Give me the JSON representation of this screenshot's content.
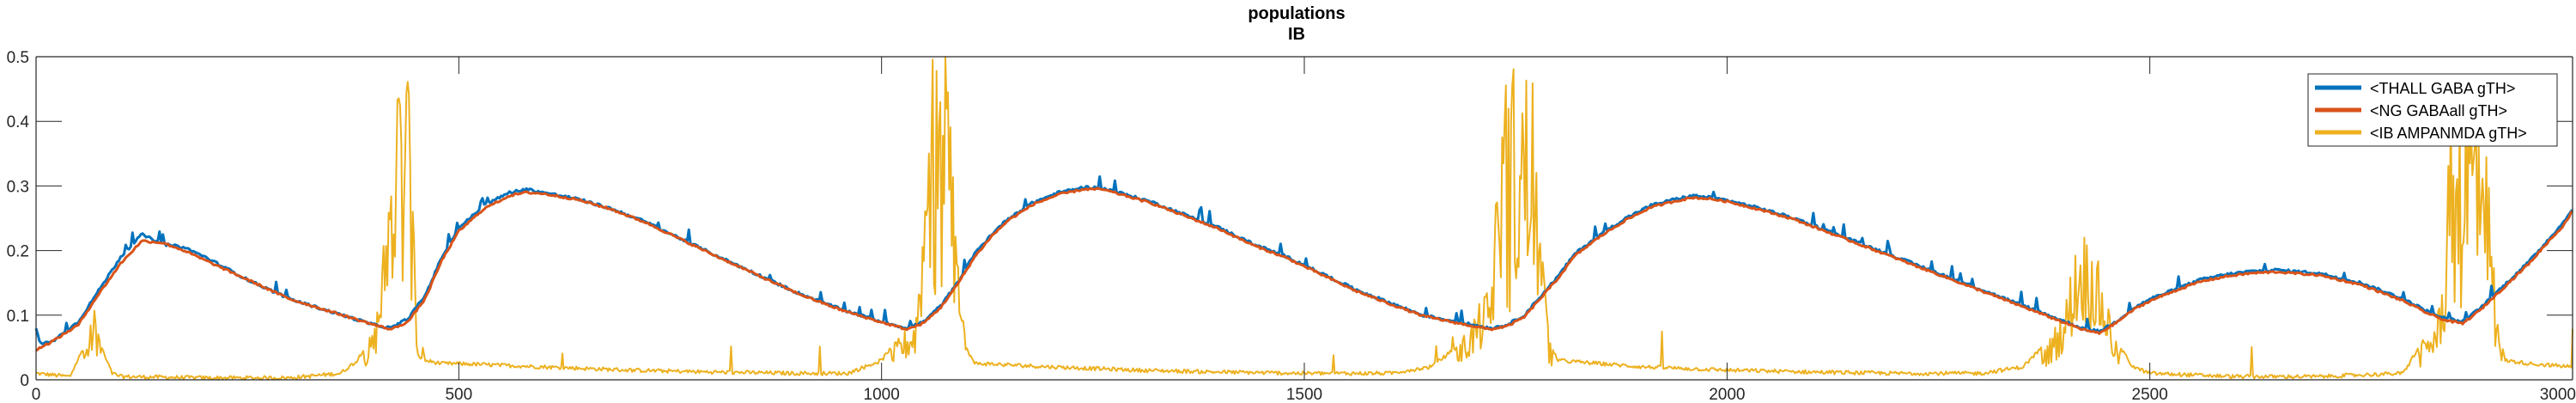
{
  "chart_data": {
    "type": "line",
    "title": "populations",
    "subtitle": "IB",
    "xlabel": "",
    "ylabel": "",
    "xlim": [
      0,
      3000
    ],
    "ylim": [
      0,
      0.5
    ],
    "x_ticks": [
      0,
      500,
      1000,
      1500,
      2000,
      2500,
      3000
    ],
    "y_ticks": [
      0,
      0.1,
      0.2,
      0.3,
      0.4,
      0.5
    ],
    "x_tick_labels": [
      "0",
      "500",
      "1000",
      "1500",
      "2000",
      "2500",
      "3000"
    ],
    "y_tick_labels": [
      "0",
      "0.1",
      "0.2",
      "0.3",
      "0.4",
      "0.5"
    ],
    "grid": false,
    "legend_position": "top-right",
    "series": [
      {
        "name": "<THALL GABA gTH>",
        "color": "#0072BD",
        "x": [
          0,
          5,
          20,
          50,
          70,
          100,
          125,
          150,
          175,
          200,
          250,
          300,
          350,
          400,
          420,
          440,
          460,
          480,
          500,
          530,
          560,
          580,
          600,
          640,
          680,
          720,
          760,
          800,
          850,
          900,
          950,
          1000,
          1030,
          1050,
          1070,
          1090,
          1110,
          1130,
          1150,
          1180,
          1210,
          1240,
          1260,
          1280,
          1320,
          1360,
          1400,
          1440,
          1480,
          1520,
          1560,
          1600,
          1640,
          1680,
          1700,
          1720,
          1740,
          1760,
          1780,
          1800,
          1820,
          1850,
          1880,
          1910,
          1940,
          1960,
          1980,
          2000,
          2040,
          2080,
          2120,
          2160,
          2200,
          2240,
          2280,
          2320,
          2360,
          2390,
          2420,
          2440,
          2460,
          2480,
          2500,
          2530,
          2560,
          2590,
          2620,
          2650,
          2700,
          2750,
          2800,
          2830,
          2850,
          2870,
          2890,
          2910,
          2930,
          2950,
          2970,
          2990,
          3000
        ],
        "y": [
          0.08,
          0.055,
          0.06,
          0.09,
          0.13,
          0.19,
          0.225,
          0.21,
          0.205,
          0.19,
          0.155,
          0.125,
          0.105,
          0.085,
          0.08,
          0.095,
          0.13,
          0.19,
          0.235,
          0.27,
          0.29,
          0.295,
          0.29,
          0.28,
          0.265,
          0.245,
          0.22,
          0.195,
          0.165,
          0.135,
          0.11,
          0.09,
          0.08,
          0.09,
          0.115,
          0.15,
          0.195,
          0.225,
          0.25,
          0.275,
          0.29,
          0.298,
          0.297,
          0.29,
          0.275,
          0.255,
          0.235,
          0.21,
          0.19,
          0.165,
          0.14,
          0.12,
          0.1,
          0.09,
          0.085,
          0.08,
          0.085,
          0.1,
          0.13,
          0.16,
          0.195,
          0.225,
          0.25,
          0.27,
          0.28,
          0.285,
          0.282,
          0.278,
          0.265,
          0.25,
          0.23,
          0.21,
          0.19,
          0.17,
          0.15,
          0.13,
          0.11,
          0.095,
          0.08,
          0.075,
          0.09,
          0.11,
          0.125,
          0.14,
          0.155,
          0.163,
          0.168,
          0.17,
          0.165,
          0.15,
          0.125,
          0.105,
          0.095,
          0.09,
          0.11,
          0.135,
          0.16,
          0.185,
          0.215,
          0.245,
          0.265
        ],
        "annotations": "small spikes superimposed on the slow envelope"
      },
      {
        "name": "<NG GABAall gTH>",
        "color": "#D95319",
        "x": [
          0,
          5,
          20,
          50,
          70,
          100,
          125,
          150,
          175,
          200,
          250,
          300,
          350,
          400,
          420,
          440,
          460,
          480,
          500,
          530,
          560,
          580,
          600,
          640,
          680,
          720,
          760,
          800,
          850,
          900,
          950,
          1000,
          1030,
          1050,
          1070,
          1090,
          1110,
          1130,
          1150,
          1180,
          1210,
          1240,
          1260,
          1280,
          1320,
          1360,
          1400,
          1440,
          1480,
          1520,
          1560,
          1600,
          1640,
          1680,
          1700,
          1720,
          1740,
          1760,
          1780,
          1800,
          1820,
          1850,
          1880,
          1910,
          1940,
          1960,
          1980,
          2000,
          2040,
          2080,
          2120,
          2160,
          2200,
          2240,
          2280,
          2320,
          2360,
          2390,
          2420,
          2440,
          2460,
          2480,
          2500,
          2530,
          2560,
          2590,
          2620,
          2650,
          2700,
          2750,
          2800,
          2830,
          2850,
          2870,
          2890,
          2910,
          2930,
          2950,
          2970,
          2990,
          3000
        ],
        "y": [
          0.045,
          0.05,
          0.06,
          0.085,
          0.125,
          0.18,
          0.215,
          0.212,
          0.2,
          0.185,
          0.155,
          0.125,
          0.105,
          0.085,
          0.078,
          0.09,
          0.125,
          0.185,
          0.23,
          0.265,
          0.285,
          0.29,
          0.288,
          0.279,
          0.264,
          0.244,
          0.219,
          0.194,
          0.164,
          0.134,
          0.109,
          0.089,
          0.078,
          0.088,
          0.112,
          0.148,
          0.19,
          0.222,
          0.247,
          0.272,
          0.287,
          0.295,
          0.295,
          0.288,
          0.273,
          0.253,
          0.233,
          0.208,
          0.188,
          0.163,
          0.138,
          0.118,
          0.099,
          0.088,
          0.083,
          0.078,
          0.083,
          0.097,
          0.127,
          0.157,
          0.192,
          0.222,
          0.247,
          0.267,
          0.277,
          0.282,
          0.28,
          0.276,
          0.263,
          0.248,
          0.228,
          0.208,
          0.188,
          0.168,
          0.148,
          0.128,
          0.108,
          0.093,
          0.078,
          0.072,
          0.088,
          0.108,
          0.122,
          0.138,
          0.152,
          0.16,
          0.165,
          0.167,
          0.162,
          0.147,
          0.122,
          0.102,
          0.092,
          0.087,
          0.107,
          0.132,
          0.157,
          0.182,
          0.212,
          0.24,
          0.262
        ]
      },
      {
        "name": "<IB AMPANMDA gTH>",
        "color": "#EDB120",
        "x": [
          0,
          40,
          60,
          70,
          75,
          80,
          90,
          100,
          200,
          300,
          360,
          380,
          400,
          410,
          420,
          425,
          430,
          440,
          450,
          460,
          480,
          500,
          600,
          700,
          800,
          900,
          960,
          1000,
          1040,
          1050,
          1055,
          1060,
          1080,
          1090,
          1100,
          1110,
          1120,
          1200,
          1300,
          1400,
          1500,
          1600,
          1650,
          1680,
          1720,
          1730,
          1740,
          1750,
          1760,
          1770,
          1780,
          1790,
          1800,
          1850,
          1900,
          2000,
          2100,
          2200,
          2300,
          2350,
          2380,
          2400,
          2410,
          2420,
          2430,
          2440,
          2450,
          2460,
          2480,
          2500,
          2600,
          2700,
          2800,
          2840,
          2850,
          2855,
          2870,
          2880,
          2890,
          2900,
          2910,
          2920,
          2950,
          3000
        ],
        "y": [
          0.01,
          0.005,
          0.06,
          0.12,
          0.08,
          0.04,
          0.01,
          0.005,
          0.003,
          0.003,
          0.01,
          0.03,
          0.08,
          0.2,
          0.4,
          0.5,
          0.5,
          0.5,
          0.1,
          0.03,
          0.025,
          0.025,
          0.02,
          0.015,
          0.012,
          0.01,
          0.01,
          0.03,
          0.1,
          0.3,
          0.5,
          0.5,
          0.5,
          0.2,
          0.05,
          0.025,
          0.025,
          0.02,
          0.015,
          0.012,
          0.01,
          0.01,
          0.02,
          0.05,
          0.15,
          0.35,
          0.5,
          0.5,
          0.5,
          0.45,
          0.25,
          0.06,
          0.03,
          0.025,
          0.02,
          0.015,
          0.012,
          0.01,
          0.01,
          0.02,
          0.06,
          0.12,
          0.2,
          0.24,
          0.22,
          0.18,
          0.13,
          0.06,
          0.02,
          0.01,
          0.005,
          0.005,
          0.01,
          0.1,
          0.2,
          0.5,
          0.5,
          0.5,
          0.5,
          0.35,
          0.1,
          0.03,
          0.025,
          0.02
        ]
      }
    ]
  }
}
